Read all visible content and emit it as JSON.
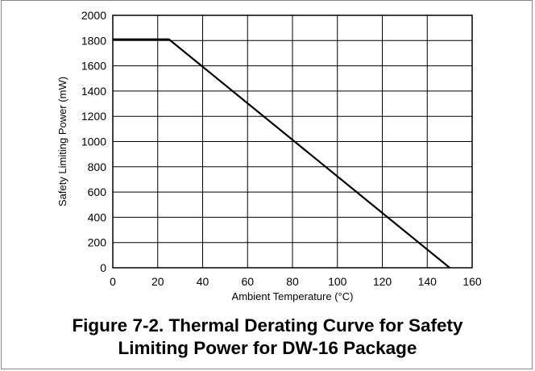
{
  "figure": {
    "caption_line1": "Figure 7-2. Thermal Derating Curve for Safety",
    "caption_line2": "Limiting Power for DW-16 Package"
  },
  "chart_data": {
    "type": "line",
    "title": "",
    "xlabel": "Ambient Temperature (°C)",
    "ylabel": "Safety Limiting Power (mW)",
    "xlim": [
      0,
      160
    ],
    "ylim": [
      0,
      2000
    ],
    "xticks": [
      0,
      20,
      40,
      60,
      80,
      100,
      120,
      140,
      160
    ],
    "yticks": [
      0,
      200,
      400,
      600,
      800,
      1000,
      1200,
      1400,
      1600,
      1800,
      2000
    ],
    "grid": true,
    "legend": "none",
    "series": [
      {
        "color": "#000000",
        "x": [
          0,
          25,
          150
        ],
        "y": [
          1810,
          1810,
          0
        ]
      }
    ]
  }
}
